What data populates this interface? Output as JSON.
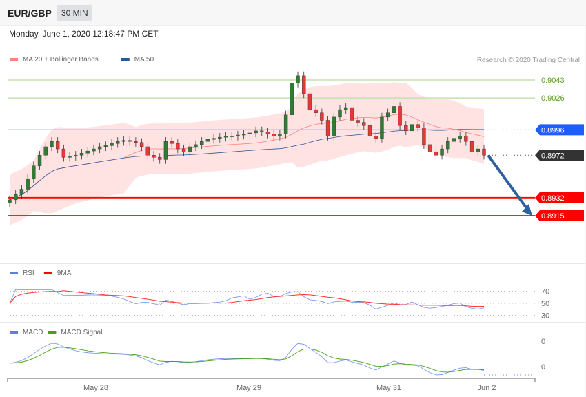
{
  "header": {
    "symbol": "EUR/GBP",
    "timeframe": "30 MIN"
  },
  "date": "Monday, June 1, 2020 12:18:47 PM CET",
  "copyright": "Research © 2020 Trading Central",
  "legend_main": [
    {
      "label": "MA 20 + Bollinger Bands",
      "color": "#ff8080"
    },
    {
      "label": "MA 50",
      "color": "#2f5597"
    }
  ],
  "legend_rsi": [
    {
      "label": "RSI",
      "color": "#5b7fe0"
    },
    {
      "label": "9MA",
      "color": "#ff0000"
    }
  ],
  "legend_macd": [
    {
      "label": "MACD",
      "color": "#5b7fe0"
    },
    {
      "label": "MACD Signal",
      "color": "#4a9e1a"
    }
  ],
  "levels": [
    {
      "value": "0.9043",
      "price": 0.9043,
      "kind": "resistance-green",
      "color": "#5a9e2a"
    },
    {
      "value": "0.9026",
      "price": 0.9026,
      "kind": "resistance-green",
      "color": "#5a9e2a"
    },
    {
      "value": "0.8996",
      "price": 0.8996,
      "kind": "pivot",
      "color": "#1e5eff"
    },
    {
      "value": "0.8972",
      "price": 0.8972,
      "kind": "last-price",
      "color": "#333333"
    },
    {
      "value": "0.8932",
      "price": 0.8932,
      "kind": "target",
      "color": "#ff0000"
    },
    {
      "value": "0.8915",
      "price": 0.8915,
      "kind": "target",
      "color": "#ff0000"
    }
  ],
  "rsi_ticks": [
    "70",
    "50",
    "30"
  ],
  "macd_ticks": [
    "0",
    "0"
  ],
  "x_labels": [
    "May 28",
    "May 29",
    "May 31",
    "Jun 2"
  ],
  "chart_data": {
    "type": "candlestick",
    "closes": [
      0.893,
      0.8935,
      0.894,
      0.895,
      0.8962,
      0.8972,
      0.898,
      0.8985,
      0.8978,
      0.897,
      0.8971,
      0.8972,
      0.8974,
      0.8976,
      0.8978,
      0.898,
      0.8981,
      0.8983,
      0.8985,
      0.8986,
      0.8985,
      0.8984,
      0.898,
      0.8972,
      0.897,
      0.8968,
      0.8985,
      0.8983,
      0.8978,
      0.8975,
      0.898,
      0.8982,
      0.8985,
      0.8987,
      0.8988,
      0.8989,
      0.899,
      0.899,
      0.8991,
      0.8992,
      0.8993,
      0.8995,
      0.8994,
      0.8992,
      0.899,
      0.8992,
      0.901,
      0.904,
      0.9047,
      0.903,
      0.9015,
      0.9012,
      0.9005,
      0.899,
      0.9008,
      0.9015,
      0.9017,
      0.9005,
      0.9003,
      0.9,
      0.899,
      0.8988,
      0.9008,
      0.9012,
      0.9018,
      0.9,
      0.8995,
      0.9001,
      0.8998,
      0.8982,
      0.8975,
      0.8972,
      0.8978,
      0.8985,
      0.8988,
      0.899,
      0.8985,
      0.8975,
      0.8978,
      0.8972
    ],
    "up_color": "#2e7d32",
    "down_color": "#e53935",
    "forecast_arrow": {
      "from": 0.8972,
      "to": 0.8915,
      "color": "#2f5f9e"
    }
  }
}
